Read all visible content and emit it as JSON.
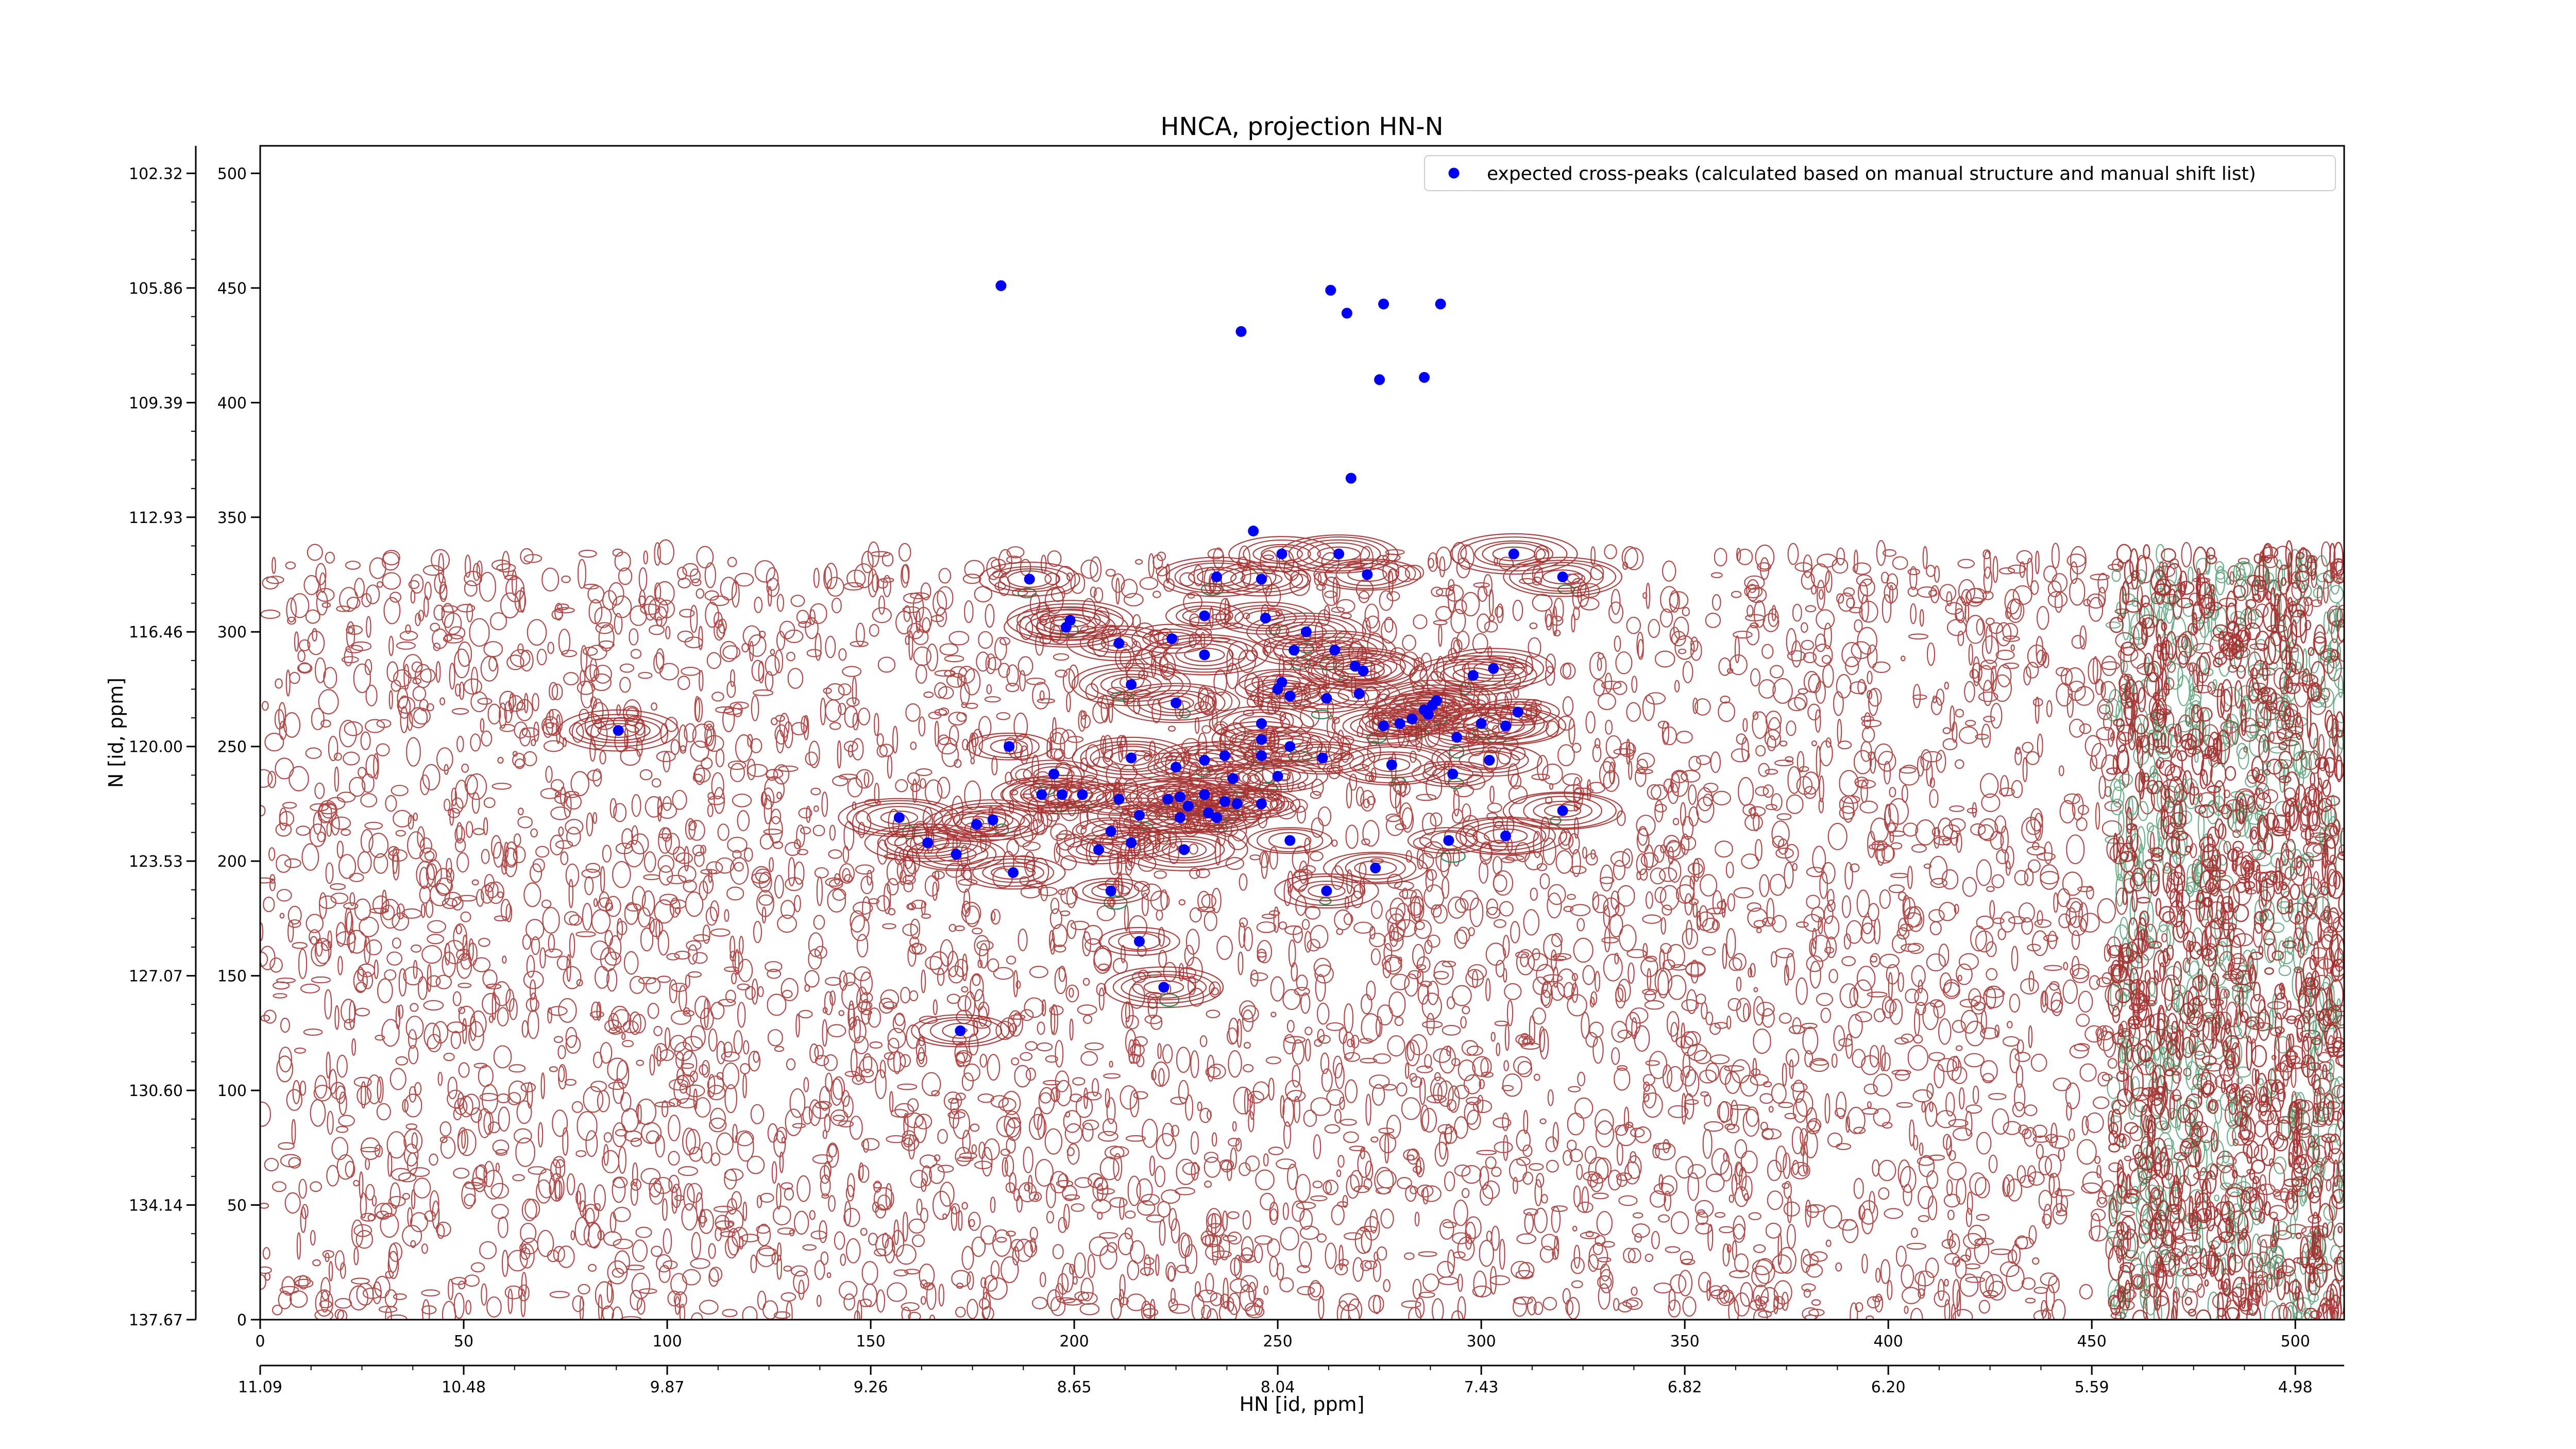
{
  "chart_data": {
    "type": "scatter",
    "title": "HNCA, projection HN-N",
    "xlabel": "HN [id, ppm]",
    "ylabel": "N [id, ppm]",
    "xlim": [
      0,
      512
    ],
    "ylim": [
      0,
      512
    ],
    "x_ticks": [
      0,
      50,
      100,
      150,
      200,
      250,
      300,
      350,
      400,
      450,
      500
    ],
    "y_ticks": [
      0,
      50,
      100,
      150,
      200,
      250,
      300,
      350,
      400,
      450,
      500
    ],
    "x_ppm_ticks": [
      {
        "value": 0,
        "label": "11.09"
      },
      {
        "value": 50,
        "label": "10.48"
      },
      {
        "value": 100,
        "label": "9.87"
      },
      {
        "value": 150,
        "label": "9.26"
      },
      {
        "value": 200,
        "label": "8.65"
      },
      {
        "value": 250,
        "label": "8.04"
      },
      {
        "value": 300,
        "label": "7.43"
      },
      {
        "value": 350,
        "label": "6.82"
      },
      {
        "value": 400,
        "label": "6.20"
      },
      {
        "value": 450,
        "label": "5.59"
      },
      {
        "value": 500,
        "label": "4.98"
      }
    ],
    "y_ppm_ticks": [
      {
        "value": 0,
        "label": "137.67"
      },
      {
        "value": 50,
        "label": "134.14"
      },
      {
        "value": 100,
        "label": "130.60"
      },
      {
        "value": 150,
        "label": "127.07"
      },
      {
        "value": 200,
        "label": "123.53"
      },
      {
        "value": 250,
        "label": "120.00"
      },
      {
        "value": 300,
        "label": "116.46"
      },
      {
        "value": 350,
        "label": "112.93"
      },
      {
        "value": 400,
        "label": "109.39"
      },
      {
        "value": 450,
        "label": "105.86"
      },
      {
        "value": 500,
        "label": "102.32"
      }
    ],
    "legend": {
      "placement": "top-right",
      "entries": [
        "expected cross-peaks (calculated based on manual structure and manual shift list)"
      ]
    },
    "contour_region": {
      "x_range": [
        0,
        512
      ],
      "y_range": [
        0,
        335
      ]
    },
    "colors": {
      "contour_positive": "#a52a2a",
      "contour_negative": "#2e8b57",
      "marker": "#0000ff"
    },
    "series": [
      {
        "name": "expected cross-peaks (calculated based on manual structure and manual shift list)",
        "points": [
          [
            182,
            451
          ],
          [
            263,
            449
          ],
          [
            267,
            439
          ],
          [
            276,
            443
          ],
          [
            290,
            443
          ],
          [
            241,
            431
          ],
          [
            275,
            410
          ],
          [
            286,
            411
          ],
          [
            268,
            367
          ],
          [
            244,
            344
          ],
          [
            189,
            323
          ],
          [
            235,
            324
          ],
          [
            251,
            334
          ],
          [
            265,
            334
          ],
          [
            272,
            325
          ],
          [
            246,
            323
          ],
          [
            308,
            334
          ],
          [
            320,
            324
          ],
          [
            199,
            305
          ],
          [
            198,
            302
          ],
          [
            232,
            307
          ],
          [
            247,
            306
          ],
          [
            211,
            295
          ],
          [
            224,
            297
          ],
          [
            257,
            300
          ],
          [
            264,
            292
          ],
          [
            232,
            290
          ],
          [
            254,
            292
          ],
          [
            269,
            285
          ],
          [
            271,
            283
          ],
          [
            303,
            284
          ],
          [
            298,
            281
          ],
          [
            214,
            277
          ],
          [
            251,
            278
          ],
          [
            250,
            275
          ],
          [
            253,
            272
          ],
          [
            262,
            271
          ],
          [
            270,
            273
          ],
          [
            289,
            270
          ],
          [
            286,
            266
          ],
          [
            288,
            268
          ],
          [
            280,
            260
          ],
          [
            283,
            262
          ],
          [
            276,
            259
          ],
          [
            287,
            264
          ],
          [
            309,
            265
          ],
          [
            225,
            269
          ],
          [
            246,
            260
          ],
          [
            294,
            254
          ],
          [
            300,
            260
          ],
          [
            306,
            259
          ],
          [
            184,
            250
          ],
          [
            246,
            253
          ],
          [
            253,
            250
          ],
          [
            214,
            245
          ],
          [
            232,
            244
          ],
          [
            237,
            246
          ],
          [
            246,
            246
          ],
          [
            261,
            245
          ],
          [
            278,
            242
          ],
          [
            302,
            244
          ],
          [
            225,
            241
          ],
          [
            239,
            236
          ],
          [
            250,
            237
          ],
          [
            293,
            238
          ],
          [
            195,
            238
          ],
          [
            192,
            229
          ],
          [
            197,
            229
          ],
          [
            202,
            229
          ],
          [
            211,
            227
          ],
          [
            226,
            228
          ],
          [
            232,
            229
          ],
          [
            237,
            226
          ],
          [
            223,
            227
          ],
          [
            228,
            224
          ],
          [
            240,
            225
          ],
          [
            246,
            225
          ],
          [
            233,
            221
          ],
          [
            226,
            219
          ],
          [
            235,
            219
          ],
          [
            320,
            222
          ],
          [
            157,
            219
          ],
          [
            176,
            216
          ],
          [
            180,
            218
          ],
          [
            216,
            220
          ],
          [
            209,
            213
          ],
          [
            164,
            208
          ],
          [
            171,
            203
          ],
          [
            214,
            208
          ],
          [
            227,
            205
          ],
          [
            253,
            209
          ],
          [
            292,
            209
          ],
          [
            306,
            211
          ],
          [
            206,
            205
          ],
          [
            185,
            195
          ],
          [
            274,
            197
          ],
          [
            209,
            187
          ],
          [
            262,
            187
          ],
          [
            216,
            165
          ],
          [
            222,
            145
          ],
          [
            172,
            126
          ],
          [
            88,
            257
          ]
        ]
      }
    ]
  }
}
